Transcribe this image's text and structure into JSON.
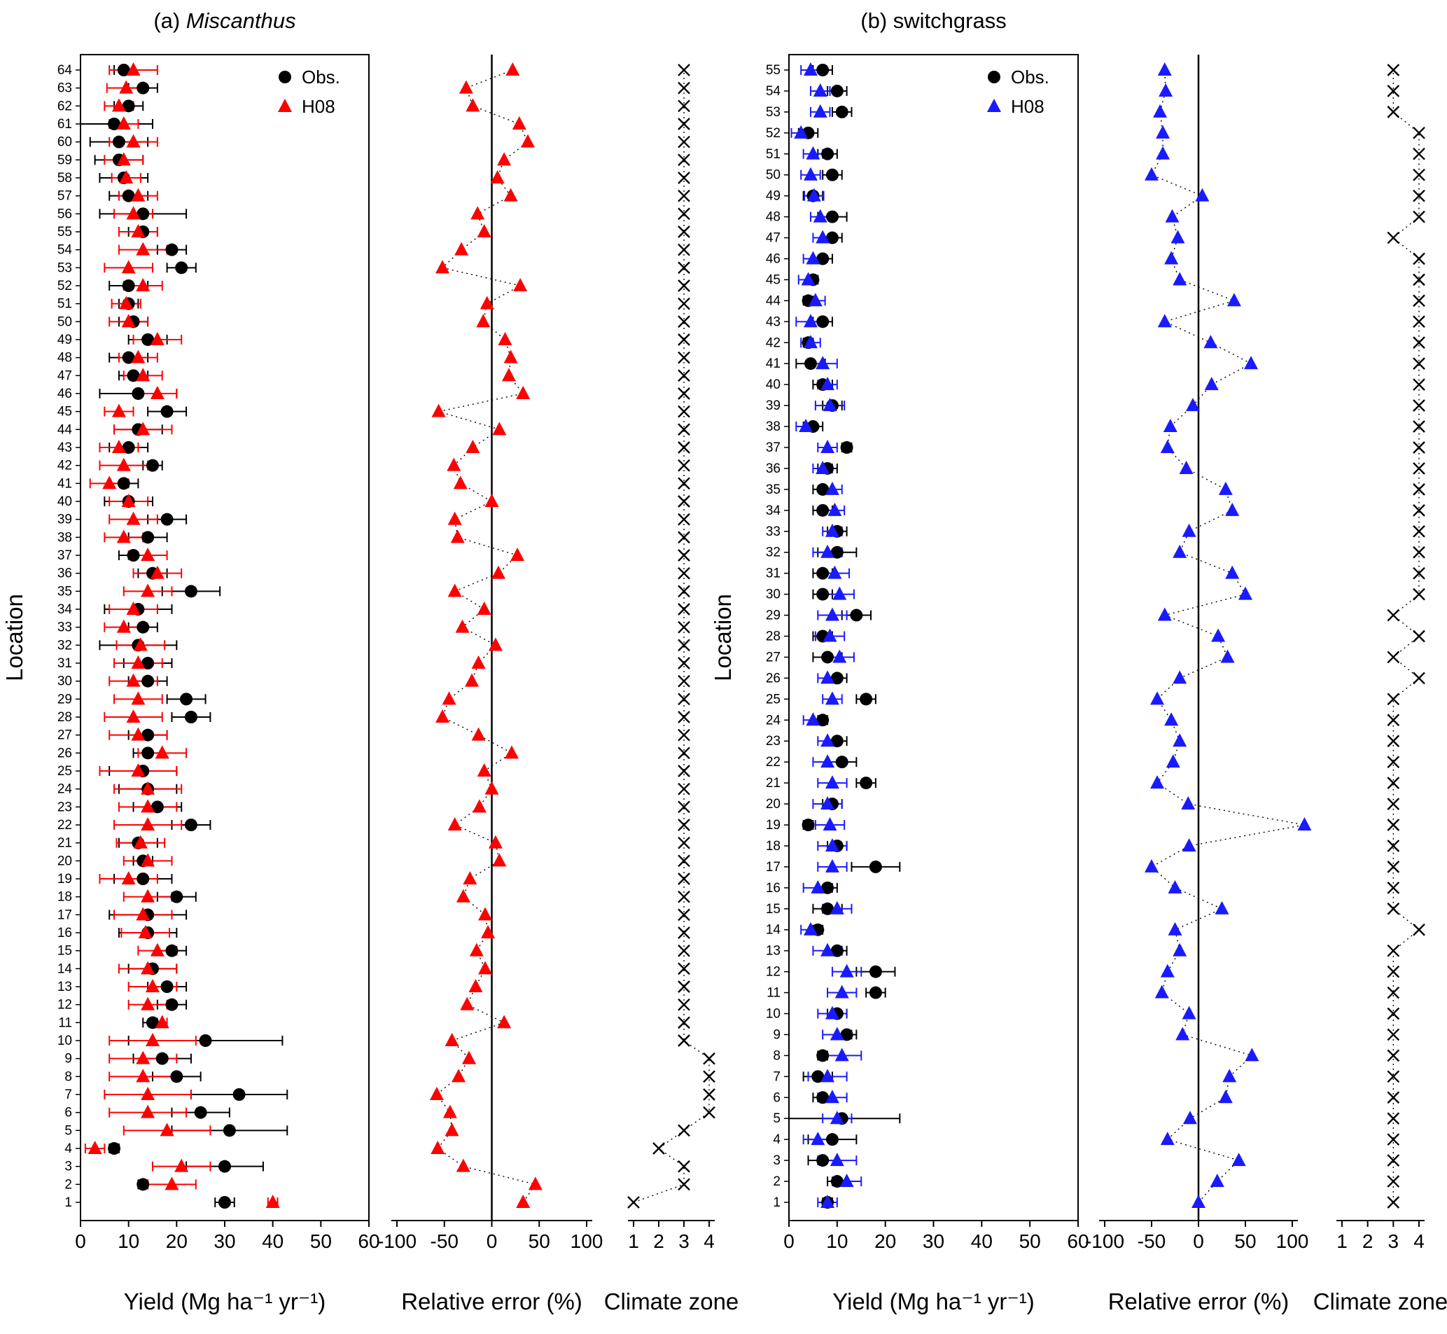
{
  "chart_data": [
    {
      "panel": "a",
      "title_prefix": "(a) ",
      "title_name": "Miscanthus",
      "title_italic": true,
      "ylabel": "Location",
      "n_locations": 64,
      "subplots": [
        {
          "name": "yield",
          "type": "scatter",
          "xlabel": "Yield (Mg ha⁻¹ yr⁻¹)",
          "xlim": [
            0,
            60
          ],
          "xticks": [
            0,
            10,
            20,
            30,
            40,
            50,
            60
          ],
          "legend_position": "top-right",
          "series": [
            {
              "name": "Obs.",
              "marker": "circle",
              "color": "#000000",
              "values": [
                30,
                13,
                30,
                7,
                31,
                25,
                33,
                20,
                17,
                26,
                15,
                19,
                18,
                15,
                19,
                14,
                14,
                20,
                13,
                13,
                12,
                23,
                16,
                14,
                13,
                14,
                14,
                23,
                22,
                14,
                14,
                12,
                13,
                12,
                23,
                15,
                11,
                14,
                18,
                10,
                9,
                15,
                10,
                12,
                18,
                12,
                11,
                10,
                14,
                11,
                10,
                10,
                21,
                19,
                13,
                13,
                10,
                9,
                8,
                8,
                7,
                10,
                13,
                9
              ],
              "errors": [
                2,
                1,
                8,
                1,
                12,
                6,
                10,
                5,
                6,
                16,
                2,
                3,
                4,
                5,
                3,
                6,
                8,
                4,
                6,
                2,
                4,
                4,
                5,
                6,
                7,
                3,
                4,
                4,
                4,
                4,
                5,
                8,
                3,
                7,
                6,
                3,
                3,
                4,
                4,
                5,
                3,
                2,
                4,
                5,
                4,
                8,
                3,
                4,
                4,
                3,
                2,
                4,
                3,
                3,
                3,
                9,
                4,
                5,
                5,
                6,
                8,
                3,
                3,
                2
              ]
            },
            {
              "name": "H08",
              "marker": "triangle",
              "color": "#ff0000",
              "values": [
                40,
                19,
                21,
                3,
                18,
                14,
                14,
                13,
                13,
                15,
                17,
                14,
                15,
                14,
                16,
                13.5,
                13,
                14,
                10,
                14,
                12.5,
                14,
                14,
                14,
                12,
                17,
                12,
                11,
                12,
                11,
                12,
                12.5,
                9,
                11,
                14,
                16,
                14,
                9,
                11,
                10,
                6,
                9,
                8,
                13,
                8,
                16,
                13,
                12,
                16,
                10,
                9.5,
                13,
                10,
                13,
                12,
                11,
                12,
                9.5,
                9,
                11,
                9,
                8,
                9.5,
                11
              ],
              "errors": [
                1,
                5,
                6,
                2,
                9,
                8,
                9,
                7,
                7,
                9,
                1,
                4,
                5,
                6,
                4,
                5,
                6,
                5,
                6,
                5,
                5,
                7,
                6,
                7,
                8,
                5,
                6,
                6,
                5,
                5,
                5,
                5,
                4,
                5,
                5,
                5,
                4,
                4,
                5,
                4,
                4,
                5,
                4,
                6,
                3,
                4,
                4,
                4,
                5,
                4,
                3,
                4,
                5,
                5,
                4,
                4,
                4,
                3,
                4,
                5,
                3,
                3,
                4,
                5
              ]
            }
          ]
        },
        {
          "name": "relative_error",
          "type": "scatter-line",
          "xlabel": "Relative error (%)",
          "xlim": [
            -100,
            100
          ],
          "xticks": [
            -100,
            -50,
            0,
            50,
            100
          ],
          "reference_line_x": 0,
          "series": [
            {
              "name": "relative error",
              "marker": "triangle",
              "color": "#ff0000",
              "values": [
                33,
                46,
                -30,
                -57,
                -42,
                -44,
                -58,
                -35,
                -24,
                -42,
                13,
                -26,
                -17,
                -7,
                -16,
                -4,
                -7,
                -30,
                -23,
                8,
                4,
                -39,
                -13,
                0,
                -8,
                21,
                -14,
                -52,
                -45,
                -21,
                -14,
                4,
                -31,
                -8,
                -39,
                7,
                27,
                -36,
                -39,
                0,
                -33,
                -40,
                -20,
                8,
                -56,
                33,
                18,
                20,
                14,
                -9,
                -5,
                30,
                -52,
                -32,
                -8,
                -15,
                20,
                6,
                13,
                38,
                29,
                -20,
                -27,
                22
              ]
            }
          ]
        },
        {
          "name": "climate_zone",
          "type": "scatter-line",
          "xlabel": "Climate zone",
          "xlim": [
            1,
            4
          ],
          "xticks": [
            1,
            2,
            3,
            4
          ],
          "series": [
            {
              "name": "climate zone",
              "marker": "x",
              "color": "#000000",
              "values": [
                1,
                3,
                3,
                2,
                3,
                4,
                4,
                4,
                4,
                3,
                3,
                3,
                3,
                3,
                3,
                3,
                3,
                3,
                3,
                3,
                3,
                3,
                3,
                3,
                3,
                3,
                3,
                3,
                3,
                3,
                3,
                3,
                3,
                3,
                3,
                3,
                3,
                3,
                3,
                3,
                3,
                3,
                3,
                3,
                3,
                3,
                3,
                3,
                3,
                3,
                3,
                3,
                3,
                3,
                3,
                3,
                3,
                3,
                3,
                3,
                3,
                3,
                3,
                3
              ]
            }
          ]
        }
      ]
    },
    {
      "panel": "b",
      "title_prefix": "(b) ",
      "title_name": "switchgrass",
      "title_italic": false,
      "ylabel": "Location",
      "n_locations": 55,
      "subplots": [
        {
          "name": "yield",
          "type": "scatter",
          "xlabel": "Yield (Mg ha⁻¹ yr⁻¹)",
          "xlim": [
            0,
            60
          ],
          "xticks": [
            0,
            10,
            20,
            30,
            40,
            50,
            60
          ],
          "legend_position": "top-right",
          "series": [
            {
              "name": "Obs.",
              "marker": "circle",
              "color": "#000000",
              "values": [
                8,
                10,
                7,
                9,
                11,
                7,
                6,
                7,
                12,
                10,
                18,
                18,
                10,
                6,
                8,
                8,
                18,
                10,
                4,
                9,
                16,
                11,
                10,
                7,
                16,
                10,
                8,
                7,
                14,
                7,
                7,
                10,
                10,
                7,
                7,
                8,
                12,
                5,
                9,
                7,
                4.5,
                4,
                7,
                4,
                5,
                7,
                9,
                9,
                5,
                9,
                8,
                4,
                11,
                10,
                7
              ],
              "errors": [
                1,
                2,
                3,
                5,
                12,
                2,
                3,
                1,
                2,
                2,
                2,
                4,
                2,
                1,
                3,
                2,
                5,
                2,
                1,
                2,
                2,
                3,
                2,
                1,
                2,
                2,
                3,
                2,
                3,
                2,
                2,
                4,
                2,
                2,
                2,
                2,
                1,
                2,
                2,
                2,
                3,
                1,
                2,
                1,
                1,
                2,
                2,
                3,
                2,
                2,
                2,
                2,
                2,
                2,
                2
              ]
            },
            {
              "name": "H08",
              "marker": "triangle",
              "color": "#1a1aff",
              "values": [
                8,
                12,
                10,
                6,
                10,
                9,
                8,
                11,
                10,
                9,
                11,
                12,
                8,
                4.5,
                10,
                6,
                9,
                9,
                8.5,
                8,
                9,
                8,
                8,
                5,
                9,
                8,
                10.5,
                8.5,
                9,
                10.5,
                9.5,
                8,
                9,
                9.5,
                9,
                7,
                8,
                3.5,
                8.5,
                8,
                7,
                4.5,
                4.5,
                5.5,
                4,
                5,
                7,
                6.5,
                5.2,
                4.5,
                5,
                2.5,
                6.5,
                6.5,
                4.5
              ],
              "errors": [
                2,
                3,
                4,
                3,
                3,
                3,
                4,
                4,
                3,
                3,
                3,
                3,
                3,
                2,
                3,
                3,
                3,
                3,
                3,
                3,
                3,
                3,
                2,
                2,
                2,
                2,
                3,
                3,
                3,
                3,
                3,
                3,
                2,
                2,
                2,
                2,
                2,
                2,
                3,
                2,
                3,
                2,
                3,
                2,
                2,
                2,
                2,
                2,
                2,
                2,
                2,
                2,
                2,
                2,
                2
              ]
            }
          ]
        },
        {
          "name": "relative_error",
          "type": "scatter-line",
          "xlabel": "Relative error (%)",
          "xlim": [
            -100,
            100
          ],
          "xticks": [
            -100,
            -50,
            0,
            50,
            100
          ],
          "reference_line_x": 0,
          "series": [
            {
              "name": "relative error",
              "marker": "triangle",
              "color": "#1a1aff",
              "values": [
                0,
                20,
                43,
                -33,
                -9,
                29,
                33,
                57,
                -17,
                -10,
                -39,
                -33,
                -20,
                -25,
                25,
                -25,
                -50,
                -10,
                113,
                -11,
                -44,
                -27,
                -20,
                -29,
                -44,
                -20,
                31,
                21,
                -36,
                50,
                36,
                -20,
                -10,
                36,
                29,
                -13,
                -33,
                -30,
                -6,
                14,
                56,
                13,
                -36,
                38,
                -20,
                -29,
                -22,
                -28,
                4,
                -50,
                -38,
                -38,
                -41,
                -35,
                -36
              ]
            }
          ]
        },
        {
          "name": "climate_zone",
          "type": "scatter-line",
          "xlabel": "Climate zone",
          "xlim": [
            1,
            4
          ],
          "xticks": [
            1,
            2,
            3,
            4
          ],
          "series": [
            {
              "name": "climate zone",
              "marker": "x",
              "color": "#000000",
              "values": [
                3,
                3,
                3,
                3,
                3,
                3,
                3,
                3,
                3,
                3,
                3,
                3,
                3,
                4,
                3,
                3,
                3,
                3,
                3,
                3,
                3,
                3,
                3,
                3,
                3,
                4,
                3,
                4,
                3,
                4,
                4,
                4,
                4,
                4,
                4,
                4,
                4,
                4,
                4,
                4,
                4,
                4,
                4,
                4,
                4,
                4,
                3,
                4,
                4,
                4,
                4,
                4,
                3,
                3,
                3
              ]
            }
          ]
        }
      ]
    }
  ]
}
